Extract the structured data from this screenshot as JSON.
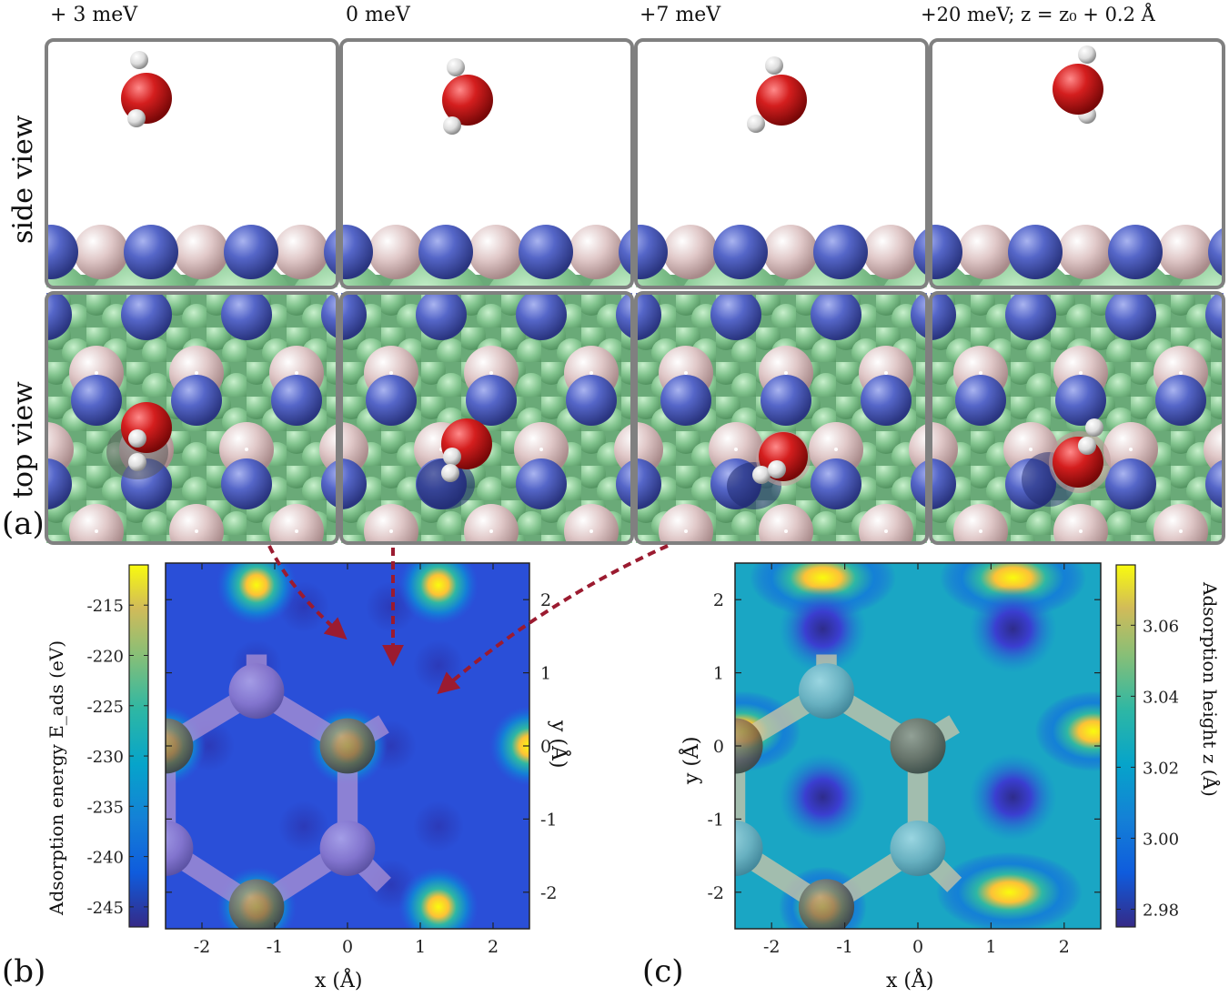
{
  "figure": {
    "panel_labels": {
      "a": "(a)",
      "b": "(b)",
      "c": "(c)"
    },
    "row_labels": {
      "side": "side view",
      "top": "top view"
    },
    "configs": [
      {
        "energy_label": "+ 3 meV"
      },
      {
        "energy_label": "0 meV"
      },
      {
        "energy_label": "+7 meV"
      },
      {
        "energy_label": "+20 meV; z = z₀ + 0.2 Å"
      }
    ],
    "colors": {
      "panel_border": "#808080",
      "boron": "#5566c8",
      "nitrogen": "#e0c8c8",
      "substrate": "#7ec08a",
      "oxygen": "#cc1c1c",
      "hydrogen": "#e8e8e8",
      "arrow": "#9b1b30"
    }
  },
  "chart_data": [
    {
      "type": "heatmap",
      "panel": "(b)",
      "xlabel": "x (Å)",
      "ylabel": "y (Å)",
      "xlim": [
        -2.5,
        2.5
      ],
      "ylim": [
        -2.5,
        2.5
      ],
      "xticks": [
        "-2",
        "-1",
        "0",
        "1",
        "2"
      ],
      "yticks": [
        "2",
        "1",
        "0",
        "-1",
        "-2"
      ],
      "colorbar_label": "Adsorption energy E_ads (eV)",
      "colorbar_ticks": [
        "-215",
        "-220",
        "-225",
        "-230",
        "-235",
        "-240",
        "-245"
      ],
      "colorbar_range": [
        -247,
        -211
      ],
      "colormap": "parula",
      "maxima": [
        {
          "x": -1.25,
          "y": 2.2
        },
        {
          "x": 1.25,
          "y": 2.2
        },
        {
          "x": -2.5,
          "y": 0
        },
        {
          "x": 0,
          "y": 0
        },
        {
          "x": 2.5,
          "y": 0
        },
        {
          "x": -1.25,
          "y": -2.2
        },
        {
          "x": 1.25,
          "y": -2.2
        }
      ]
    },
    {
      "type": "heatmap",
      "panel": "(c)",
      "xlabel": "x (Å)",
      "ylabel": "y (Å)",
      "xlim": [
        -2.5,
        2.5
      ],
      "ylim": [
        -2.5,
        2.5
      ],
      "xticks": [
        "-2",
        "-1",
        "0",
        "1",
        "2"
      ],
      "yticks": [
        "2",
        "1",
        "0",
        "-1",
        "-2"
      ],
      "colorbar_label": "Adsorption height z (Å)",
      "colorbar_ticks": [
        "3.06",
        "3.04",
        "3.02",
        "3.00",
        "2.98"
      ],
      "colorbar_range": [
        2.975,
        3.077
      ],
      "colormap": "parula",
      "minima": [
        {
          "x": -1.3,
          "y": 1.6
        },
        {
          "x": 1.3,
          "y": 1.6
        },
        {
          "x": -1.3,
          "y": -0.7
        },
        {
          "x": 1.3,
          "y": -0.7
        }
      ]
    }
  ]
}
